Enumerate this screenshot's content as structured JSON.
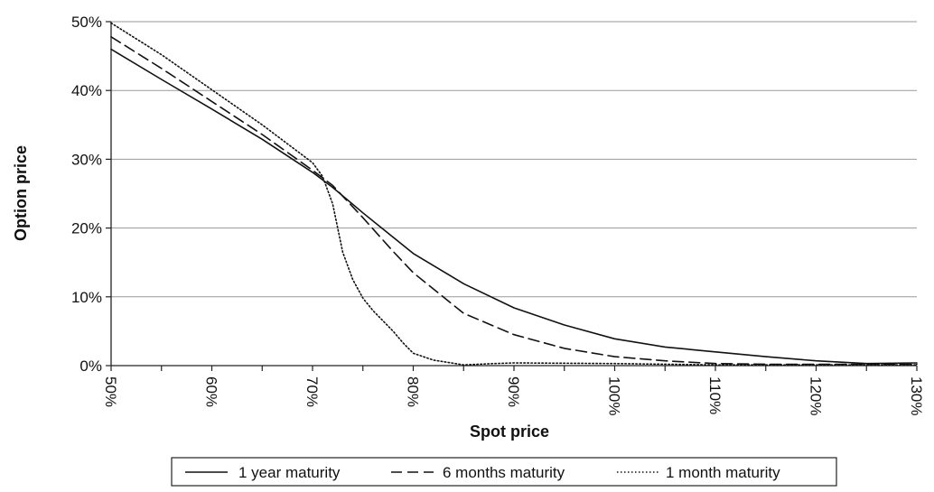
{
  "chart_data": {
    "type": "line",
    "title": "",
    "xlabel": "Spot price",
    "ylabel": "Option price",
    "xlim": [
      50,
      130
    ],
    "ylim": [
      0,
      50
    ],
    "x_tick_labels": [
      "50%",
      "60%",
      "70%",
      "80%",
      "90%",
      "100%",
      "110%",
      "120%",
      "130%"
    ],
    "y_tick_labels": [
      "0%",
      "10%",
      "20%",
      "30%",
      "40%",
      "50%"
    ],
    "grid": "horizontal",
    "legend_position": "bottom",
    "series": [
      {
        "name": "1 year maturity",
        "style": "solid",
        "x": [
          50,
          55,
          60,
          65,
          70,
          72,
          75,
          80,
          85,
          90,
          95,
          100,
          105,
          110,
          115,
          120,
          125,
          130
        ],
        "y": [
          46.0,
          41.6,
          37.3,
          32.9,
          28.1,
          25.9,
          22.2,
          16.3,
          11.9,
          8.4,
          5.9,
          3.9,
          2.7,
          2.0,
          1.3,
          0.7,
          0.3,
          0.4
        ]
      },
      {
        "name": "6 months maturity",
        "style": "dashed",
        "x": [
          50,
          55,
          60,
          65,
          70,
          72,
          75,
          78,
          80,
          85,
          90,
          95,
          100,
          105,
          110,
          115,
          120,
          125,
          130
        ],
        "y": [
          47.8,
          43.2,
          38.4,
          33.6,
          28.4,
          26.2,
          21.5,
          16.6,
          13.5,
          7.6,
          4.5,
          2.5,
          1.3,
          0.7,
          0.3,
          0.2,
          0.2,
          0.2,
          0.2
        ]
      },
      {
        "name": "1 month maturity",
        "style": "dotted",
        "x": [
          50,
          55,
          60,
          65,
          70,
          71,
          72,
          73,
          74,
          75,
          76,
          77,
          78,
          79,
          80,
          82,
          85,
          88,
          90,
          100,
          110,
          120,
          130
        ],
        "y": [
          49.8,
          45.2,
          40.1,
          35.0,
          29.5,
          27.5,
          23.5,
          16.5,
          12.5,
          9.8,
          8.0,
          6.5,
          5.0,
          3.3,
          1.8,
          0.8,
          0.1,
          0.3,
          0.4,
          0.3,
          0.1,
          0.1,
          0.1
        ]
      }
    ]
  }
}
